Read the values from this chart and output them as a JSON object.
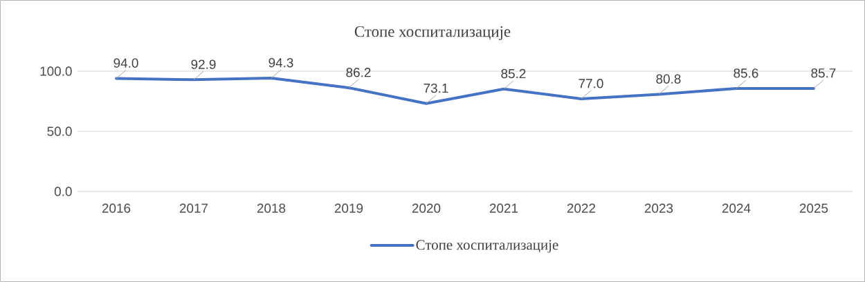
{
  "chart_data": {
    "type": "line",
    "title": "Стопе хоспитализације",
    "categories": [
      "2016",
      "2017",
      "2018",
      "2019",
      "2020",
      "2021",
      "2022",
      "2023",
      "2024",
      "2025"
    ],
    "series": [
      {
        "name": "Стопе хоспитализације",
        "color": "#4472c4",
        "values": [
          94.0,
          92.9,
          94.3,
          86.2,
          73.1,
          85.2,
          77.0,
          80.8,
          85.6,
          85.7
        ],
        "value_labels": [
          "94.0",
          "92.9",
          "94.3",
          "86.2",
          "73.1",
          "85.2",
          "77.0",
          "80.8",
          "85.6",
          "85.7"
        ]
      }
    ],
    "ylim": [
      0,
      100
    ],
    "yticks": [
      {
        "value": 0,
        "label": "0.0"
      },
      {
        "value": 50,
        "label": "50.0"
      },
      {
        "value": 100,
        "label": "100.0"
      }
    ],
    "grid": "y",
    "legend": "bottom",
    "marker": "none",
    "line_style": "solid"
  }
}
